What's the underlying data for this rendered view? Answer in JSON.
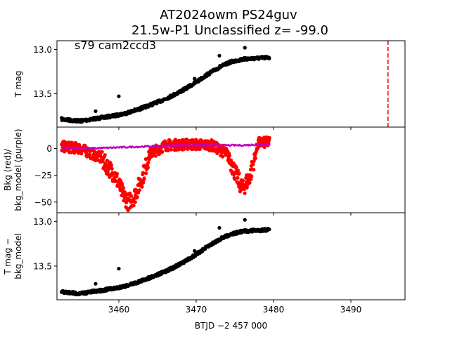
{
  "title_line1": "AT2024owm  PS24guv",
  "title_line2": "21.5w-P1 Unclassified z= -99.0",
  "annotation": "s79 cam2ccd3",
  "colors": {
    "points": "#000000",
    "bkg": "#ff0000",
    "bkg_model": "#bf00bf",
    "marker_line": "#ff0000"
  },
  "chart_data": [
    {
      "type": "scatter",
      "panel": "top",
      "ylabel": "T mag",
      "xlim": [
        3452,
        3497
      ],
      "ylim": [
        13.88,
        12.9
      ],
      "yticks": [
        13.0,
        13.5
      ],
      "ytick_labels": [
        "13.0",
        "13.5"
      ],
      "vline_x": 3494.8,
      "series": [
        {
          "points": [
            [
              3452.6,
              13.79
            ],
            [
              3453.5,
              13.8
            ],
            [
              3455.0,
              13.81
            ],
            [
              3456.5,
              13.79
            ],
            [
              3458.0,
              13.77
            ],
            [
              3459.5,
              13.75
            ],
            [
              3461.0,
              13.72
            ],
            [
              3462.5,
              13.68
            ],
            [
              3464.0,
              13.63
            ],
            [
              3465.5,
              13.58
            ],
            [
              3467.0,
              13.52
            ],
            [
              3468.5,
              13.45
            ],
            [
              3470.0,
              13.37
            ],
            [
              3471.5,
              13.28
            ],
            [
              3473.0,
              13.2
            ],
            [
              3474.5,
              13.14
            ],
            [
              3476.0,
              13.11
            ],
            [
              3477.5,
              13.1
            ],
            [
              3479.5,
              13.09
            ]
          ]
        }
      ]
    },
    {
      "type": "scatter",
      "panel": "middle",
      "ylabel": "Bkg (red)/\nbkg_model (purple)",
      "xlim": [
        3452,
        3497
      ],
      "ylim": [
        -60,
        20
      ],
      "yticks": [
        0,
        -25,
        -50
      ],
      "ytick_labels": [
        "0",
        "−25",
        "−50"
      ],
      "series": [
        {
          "points": [
            [
              3452.6,
              2
            ],
            [
              3455.0,
              0
            ],
            [
              3457.5,
              -8
            ],
            [
              3459.5,
              -25
            ],
            [
              3460.5,
              -42
            ],
            [
              3461.2,
              -50
            ],
            [
              3462.0,
              -45
            ],
            [
              3463.0,
              -28
            ],
            [
              3464.0,
              -5
            ],
            [
              3466.0,
              3
            ],
            [
              3469.0,
              4
            ],
            [
              3472.0,
              3
            ],
            [
              3474.0,
              -5
            ],
            [
              3475.2,
              -25
            ],
            [
              3476.0,
              -38
            ],
            [
              3477.0,
              -25
            ],
            [
              3478.0,
              5
            ],
            [
              3479.5,
              6
            ]
          ]
        },
        {
          "points": [
            [
              3452.6,
              1
            ],
            [
              3456.0,
              0
            ],
            [
              3460.0,
              1
            ],
            [
              3464.0,
              2
            ],
            [
              3468.0,
              3
            ],
            [
              3472.0,
              3
            ],
            [
              3476.0,
              3
            ],
            [
              3479.5,
              4
            ]
          ]
        }
      ]
    },
    {
      "type": "scatter",
      "panel": "bottom",
      "ylabel": "T mag −\nbkg_model",
      "xlabel": "BTJD −2 457 000",
      "xlim": [
        3452,
        3497
      ],
      "ylim": [
        13.88,
        12.9
      ],
      "yticks": [
        13.0,
        13.5
      ],
      "ytick_labels": [
        "13.0",
        "13.5"
      ],
      "xticks": [
        3460,
        3470,
        3480,
        3490
      ],
      "xtick_labels": [
        "3460",
        "3470",
        "3480",
        "3490"
      ],
      "series": [
        {
          "points": [
            [
              3452.6,
              13.79
            ],
            [
              3453.5,
              13.8
            ],
            [
              3455.0,
              13.81
            ],
            [
              3456.5,
              13.79
            ],
            [
              3458.0,
              13.77
            ],
            [
              3459.5,
              13.75
            ],
            [
              3461.0,
              13.72
            ],
            [
              3462.5,
              13.68
            ],
            [
              3464.0,
              13.63
            ],
            [
              3465.5,
              13.58
            ],
            [
              3467.0,
              13.52
            ],
            [
              3468.5,
              13.45
            ],
            [
              3470.0,
              13.37
            ],
            [
              3471.5,
              13.28
            ],
            [
              3473.0,
              13.2
            ],
            [
              3474.5,
              13.14
            ],
            [
              3476.0,
              13.11
            ],
            [
              3477.5,
              13.1
            ],
            [
              3479.5,
              13.09
            ]
          ]
        }
      ]
    }
  ]
}
